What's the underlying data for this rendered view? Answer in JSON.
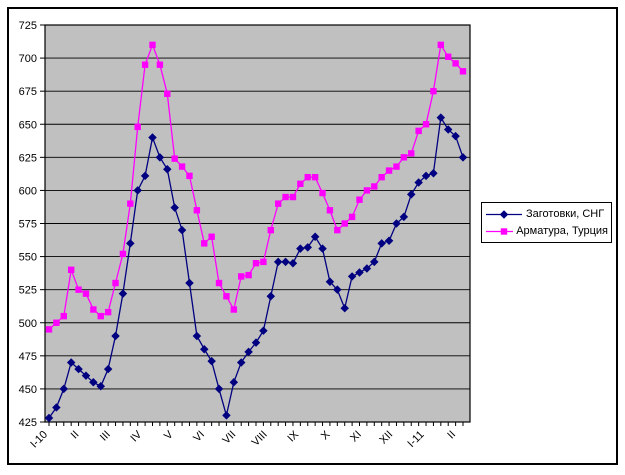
{
  "window": {
    "background_color": "#FFFFFF",
    "frame_border_color": "#000000"
  },
  "chart_data": {
    "type": "line",
    "title": "",
    "xlabel": "",
    "ylabel": "",
    "ylim": [
      425,
      725
    ],
    "y_ticks": [
      425,
      450,
      475,
      500,
      525,
      550,
      575,
      600,
      625,
      650,
      675,
      700,
      725
    ],
    "grid": "horizontal",
    "plot_background": "#C0C0C0",
    "gridline_color": "#000000",
    "legend_position": "right",
    "x_labels": [
      "I-10",
      "II",
      "III",
      "IV",
      "V",
      "VI",
      "VII",
      "VIII",
      "IX",
      "X",
      "XI",
      "XII",
      "I-11",
      "II"
    ],
    "series": [
      {
        "name": "Заготовки, СНГ",
        "color": "#000080",
        "marker": "diamond",
        "values": [
          428,
          436,
          450,
          470,
          465,
          460,
          455,
          452,
          465,
          490,
          522,
          560,
          600,
          611,
          640,
          625,
          616,
          587,
          570,
          530,
          490,
          480,
          471,
          450,
          430,
          455,
          470,
          478,
          485,
          494,
          520,
          546,
          546,
          545,
          556,
          557,
          565,
          556,
          531,
          525,
          511,
          535,
          538,
          541,
          546,
          560,
          562,
          575,
          580,
          597,
          606,
          611,
          613,
          655,
          646,
          641,
          625
        ]
      },
      {
        "name": "Арматура, Турция",
        "color": "#FF00FF",
        "marker": "square",
        "values": [
          495,
          500,
          505,
          540,
          525,
          522,
          510,
          505,
          508,
          530,
          552,
          590,
          648,
          695,
          710,
          695,
          673,
          624,
          618,
          611,
          585,
          560,
          565,
          530,
          520,
          510,
          535,
          536,
          545,
          546,
          570,
          590,
          595,
          595,
          605,
          610,
          610,
          598,
          585,
          570,
          575,
          580,
          593,
          600,
          603,
          610,
          615,
          618,
          625,
          628,
          645,
          650,
          675,
          710,
          701,
          696,
          690
        ]
      }
    ]
  }
}
